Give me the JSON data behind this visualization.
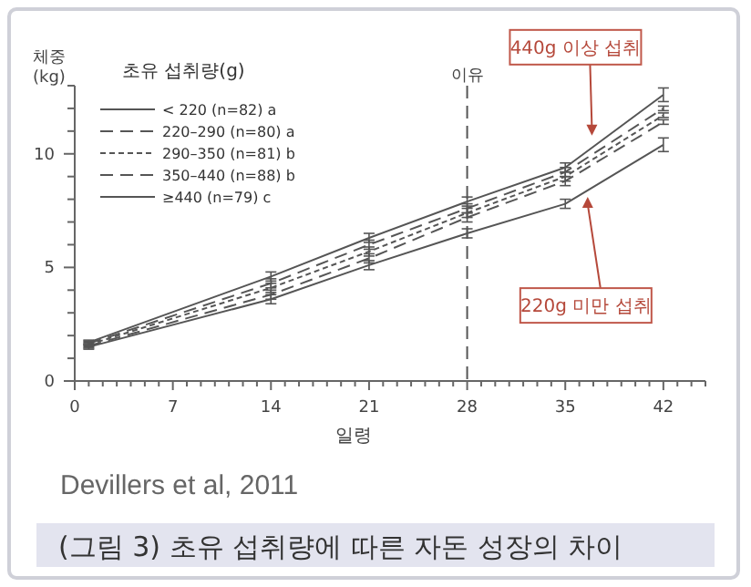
{
  "chart_data": {
    "type": "line",
    "xlabel": "일령",
    "ylabel": "체중 (kg)",
    "legend_title": "초유 섭취량(g)",
    "legend": "top left",
    "marker": "none",
    "grid": false,
    "x": [
      1,
      14,
      21,
      28,
      35,
      42
    ],
    "xlim": [
      0,
      45
    ],
    "ylim": [
      0,
      13
    ],
    "xticks": [
      0,
      {
        "value": 1,
        "label": null
      },
      {
        "value": 2,
        "label": null
      },
      {
        "value": 3,
        "label": null
      },
      {
        "value": 4,
        "label": null
      },
      {
        "value": 5,
        "label": null
      },
      {
        "value": 6,
        "label": null
      },
      7,
      {
        "value": 8,
        "label": null
      },
      {
        "value": 9,
        "label": null
      },
      {
        "value": 10,
        "label": null
      },
      {
        "value": 11,
        "label": null
      },
      {
        "value": 12,
        "label": null
      },
      {
        "value": 13,
        "label": null
      },
      14,
      {
        "value": 15,
        "label": null
      },
      {
        "value": 16,
        "label": null
      },
      {
        "value": 17,
        "label": null
      },
      {
        "value": 18,
        "label": null
      },
      {
        "value": 19,
        "label": null
      },
      {
        "value": 20,
        "label": null
      },
      21,
      {
        "value": 22,
        "label": null
      },
      {
        "value": 23,
        "label": null
      },
      {
        "value": 24,
        "label": null
      },
      {
        "value": 25,
        "label": null
      },
      {
        "value": 26,
        "label": null
      },
      {
        "value": 27,
        "label": null
      },
      28,
      {
        "value": 29,
        "label": null
      },
      {
        "value": 30,
        "label": null
      },
      {
        "value": 31,
        "label": null
      },
      {
        "value": 32,
        "label": null
      },
      {
        "value": 33,
        "label": null
      },
      {
        "value": 34,
        "label": null
      },
      35,
      {
        "value": 36,
        "label": null
      },
      {
        "value": 37,
        "label": null
      },
      {
        "value": 38,
        "label": null
      },
      {
        "value": 39,
        "label": null
      },
      {
        "value": 40,
        "label": null
      },
      {
        "value": 41,
        "label": null
      },
      42,
      {
        "value": 43,
        "label": null
      },
      {
        "value": 44,
        "label": null
      },
      {
        "value": 45,
        "label": null
      }
    ],
    "yticks": [
      0,
      {
        "value": 1,
        "label": null
      },
      {
        "value": 2,
        "label": null
      },
      {
        "value": 3,
        "label": null
      },
      {
        "value": 4,
        "label": null
      },
      5,
      {
        "value": 6,
        "label": null
      },
      {
        "value": 7,
        "label": null
      },
      {
        "value": 8,
        "label": null
      },
      {
        "value": 9,
        "label": null
      },
      10,
      {
        "value": 11,
        "label": null
      },
      {
        "value": 12,
        "label": null
      },
      {
        "value": 13,
        "label": null
      }
    ],
    "series": [
      {
        "name": "< 220 (n=82) a",
        "color": "#555555",
        "line_style": "solid",
        "values": [
          1.5,
          3.6,
          5.1,
          6.5,
          7.8,
          10.4
        ],
        "errors": [
          0.1,
          0.2,
          0.2,
          0.2,
          0.2,
          0.3
        ]
      },
      {
        "name": "220–290 (n=80) a",
        "color": "#555555",
        "line_style": "dashed",
        "values": [
          1.55,
          3.8,
          5.4,
          7.2,
          8.8,
          11.4
        ],
        "errors": [
          0.1,
          0.2,
          0.2,
          0.2,
          0.2,
          0.1
        ]
      },
      {
        "name": "290–350 (n=81) b",
        "color": "#555555",
        "line_style": "dotted",
        "values": [
          1.6,
          4.1,
          5.7,
          7.4,
          9.0,
          11.7
        ],
        "errors": [
          0.1,
          0.2,
          0.2,
          0.2,
          0.2,
          0.1
        ]
      },
      {
        "name": "350–440 (n=88) b",
        "color": "#555555",
        "line_style": "dashed",
        "values": [
          1.65,
          4.3,
          6.0,
          7.6,
          9.2,
          12.0
        ],
        "errors": [
          0.1,
          0.2,
          0.2,
          0.2,
          0.2,
          0.1
        ]
      },
      {
        "name": "≥440 (n=79) c",
        "color": "#555555",
        "line_style": "solid",
        "values": [
          1.7,
          4.6,
          6.3,
          7.9,
          9.4,
          12.6
        ],
        "errors": [
          0.1,
          0.2,
          0.2,
          0.2,
          0.2,
          0.3
        ]
      }
    ],
    "ref_lines": [
      {
        "axis": "x",
        "value": 28,
        "label": "이유",
        "line_style": "dashed",
        "color": "#555555"
      }
    ],
    "annotations": [
      {
        "text": "440g 이상 섭취",
        "x": 36.9,
        "y": 10.8
      },
      {
        "text": "220g 미만 섭취",
        "x": 36.6,
        "y": 8.1
      },
      "Devillers et al, 2011",
      "(그림 3) 초유 섭취량에 따른 자돈 성장의 차이"
    ]
  }
}
